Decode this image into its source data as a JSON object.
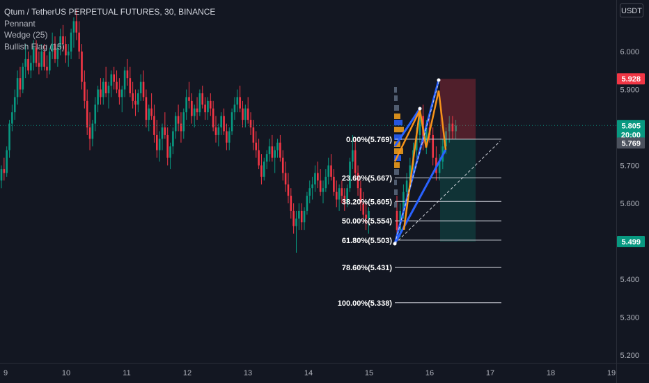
{
  "header": {
    "symbol_line": "Qtum / TetherUS PERPETUAL FUTURES, 30, BINANCE",
    "indicators": [
      "Pennant",
      "Wedge (25)",
      "Bullish Flag (15)"
    ],
    "currency": "USDT"
  },
  "chart_data": {
    "type": "candlestick",
    "title": "Qtum / TetherUS PERPETUAL FUTURES, 30, BINANCE",
    "xlabel": "",
    "ylabel": "",
    "x_ticks": [
      "9",
      "10",
      "11",
      "12",
      "13",
      "14",
      "15",
      "16",
      "17",
      "18",
      "19"
    ],
    "y_ticks": [
      "6.000",
      "5.900",
      "5.800",
      "5.700",
      "5.600",
      "5.500",
      "5.400",
      "5.300",
      "5.200"
    ],
    "ylim": [
      5.19,
      6.115
    ],
    "grid": false,
    "price_tags": [
      {
        "label": "5.928",
        "value": 5.928,
        "color": "#f23645"
      },
      {
        "label": "5.805",
        "value": 5.805,
        "color": "#089981"
      },
      {
        "label": "20:00",
        "value": 5.781,
        "color": "#089981"
      },
      {
        "label": "5.769",
        "value": 5.759,
        "color": "#4c525e"
      },
      {
        "label": "5.499",
        "value": 5.499,
        "color": "#089981"
      }
    ],
    "current_price": 5.805,
    "fibonacci": [
      {
        "label": "0.00%(5.769)",
        "value": 5.769
      },
      {
        "label": "23.60%(5.667)",
        "value": 5.667
      },
      {
        "label": "38.20%(5.605)",
        "value": 5.605
      },
      {
        "label": "50.00%(5.554)",
        "value": 5.554
      },
      {
        "label": "61.80%(5.503)",
        "value": 5.503
      },
      {
        "label": "78.60%(5.431)",
        "value": 5.431
      },
      {
        "label": "100.00%(5.338)",
        "value": 5.338
      }
    ],
    "position": {
      "entry": 5.769,
      "stop": 5.928,
      "target": 5.499
    },
    "candles": [
      [
        5.66,
        5.7,
        5.64,
        5.69
      ],
      [
        5.69,
        5.72,
        5.66,
        5.68
      ],
      [
        5.68,
        5.75,
        5.67,
        5.74
      ],
      [
        5.74,
        5.82,
        5.72,
        5.81
      ],
      [
        5.81,
        5.86,
        5.79,
        5.84
      ],
      [
        5.84,
        5.9,
        5.82,
        5.88
      ],
      [
        5.88,
        5.95,
        5.86,
        5.93
      ],
      [
        5.93,
        5.96,
        5.88,
        5.9
      ],
      [
        5.9,
        5.97,
        5.89,
        5.96
      ],
      [
        5.96,
        6.02,
        5.93,
        5.98
      ],
      [
        5.98,
        6.0,
        5.94,
        5.95
      ],
      [
        5.95,
        5.99,
        5.93,
        5.97
      ],
      [
        5.97,
        6.03,
        5.95,
        6.01
      ],
      [
        6.01,
        6.03,
        5.96,
        5.97
      ],
      [
        5.97,
        6.0,
        5.94,
        5.96
      ],
      [
        5.96,
        6.02,
        5.95,
        6.0
      ],
      [
        6.0,
        6.02,
        5.95,
        5.96
      ],
      [
        5.96,
        5.99,
        5.93,
        5.95
      ],
      [
        5.95,
        6.01,
        5.94,
        6.0
      ],
      [
        6.0,
        6.05,
        5.98,
        6.02
      ],
      [
        6.02,
        6.04,
        5.97,
        5.98
      ],
      [
        5.98,
        6.02,
        5.96,
        6.01
      ],
      [
        6.01,
        6.06,
        5.99,
        6.04
      ],
      [
        6.04,
        6.07,
        6.0,
        6.02
      ],
      [
        6.02,
        6.04,
        5.97,
        5.99
      ],
      [
        5.99,
        6.02,
        5.96,
        6.0
      ],
      [
        6.0,
        6.06,
        5.98,
        6.05
      ],
      [
        6.05,
        6.09,
        6.01,
        6.08
      ],
      [
        6.08,
        6.11,
        6.03,
        6.05
      ],
      [
        6.05,
        6.08,
        5.98,
        6.0
      ],
      [
        6.0,
        6.02,
        5.9,
        5.92
      ],
      [
        5.92,
        5.95,
        5.85,
        5.87
      ],
      [
        5.87,
        5.9,
        5.78,
        5.8
      ],
      [
        5.8,
        5.84,
        5.74,
        5.77
      ],
      [
        5.77,
        5.82,
        5.75,
        5.81
      ],
      [
        5.81,
        5.88,
        5.79,
        5.86
      ],
      [
        5.86,
        5.91,
        5.84,
        5.9
      ],
      [
        5.9,
        5.93,
        5.86,
        5.88
      ],
      [
        5.88,
        5.93,
        5.86,
        5.92
      ],
      [
        5.92,
        5.96,
        5.88,
        5.89
      ],
      [
        5.89,
        5.92,
        5.85,
        5.91
      ],
      [
        5.91,
        5.95,
        5.88,
        5.94
      ],
      [
        5.94,
        5.96,
        5.9,
        5.92
      ],
      [
        5.92,
        5.95,
        5.89,
        5.9
      ],
      [
        5.9,
        5.93,
        5.86,
        5.88
      ],
      [
        5.88,
        5.91,
        5.84,
        5.9
      ],
      [
        5.9,
        5.96,
        5.88,
        5.95
      ],
      [
        5.95,
        5.98,
        5.91,
        5.93
      ],
      [
        5.93,
        5.96,
        5.88,
        5.89
      ],
      [
        5.89,
        5.92,
        5.85,
        5.87
      ],
      [
        5.87,
        5.9,
        5.83,
        5.86
      ],
      [
        5.86,
        5.9,
        5.84,
        5.89
      ],
      [
        5.89,
        5.94,
        5.87,
        5.92
      ],
      [
        5.92,
        5.95,
        5.87,
        5.88
      ],
      [
        5.88,
        5.9,
        5.8,
        5.82
      ],
      [
        5.82,
        5.86,
        5.79,
        5.85
      ],
      [
        5.85,
        5.89,
        5.82,
        5.83
      ],
      [
        5.83,
        5.86,
        5.76,
        5.78
      ],
      [
        5.78,
        5.82,
        5.72,
        5.74
      ],
      [
        5.74,
        5.79,
        5.71,
        5.77
      ],
      [
        5.77,
        5.81,
        5.74,
        5.8
      ],
      [
        5.8,
        5.84,
        5.77,
        5.78
      ],
      [
        5.78,
        5.8,
        5.7,
        5.72
      ],
      [
        5.72,
        5.76,
        5.69,
        5.75
      ],
      [
        5.75,
        5.8,
        5.73,
        5.79
      ],
      [
        5.79,
        5.84,
        5.77,
        5.83
      ],
      [
        5.83,
        5.86,
        5.79,
        5.81
      ],
      [
        5.81,
        5.84,
        5.76,
        5.79
      ],
      [
        5.79,
        5.85,
        5.77,
        5.84
      ],
      [
        5.84,
        5.9,
        5.82,
        5.88
      ],
      [
        5.88,
        5.92,
        5.85,
        5.87
      ],
      [
        5.87,
        5.89,
        5.81,
        5.83
      ],
      [
        5.83,
        5.86,
        5.8,
        5.85
      ],
      [
        5.85,
        5.88,
        5.82,
        5.84
      ],
      [
        5.84,
        5.9,
        5.83,
        5.89
      ],
      [
        5.89,
        5.91,
        5.85,
        5.86
      ],
      [
        5.86,
        5.88,
        5.82,
        5.84
      ],
      [
        5.84,
        5.88,
        5.82,
        5.87
      ],
      [
        5.87,
        5.89,
        5.83,
        5.85
      ],
      [
        5.85,
        5.87,
        5.79,
        5.8
      ],
      [
        5.8,
        5.83,
        5.76,
        5.78
      ],
      [
        5.78,
        5.81,
        5.75,
        5.8
      ],
      [
        5.8,
        5.84,
        5.78,
        5.83
      ],
      [
        5.83,
        5.85,
        5.78,
        5.79
      ],
      [
        5.79,
        5.81,
        5.74,
        5.76
      ],
      [
        5.76,
        5.8,
        5.74,
        5.79
      ],
      [
        5.79,
        5.85,
        5.78,
        5.84
      ],
      [
        5.84,
        5.88,
        5.82,
        5.86
      ],
      [
        5.86,
        5.9,
        5.84,
        5.88
      ],
      [
        5.88,
        5.91,
        5.84,
        5.85
      ],
      [
        5.85,
        5.87,
        5.8,
        5.82
      ],
      [
        5.82,
        5.86,
        5.8,
        5.85
      ],
      [
        5.85,
        5.88,
        5.81,
        5.82
      ],
      [
        5.82,
        5.84,
        5.78,
        5.8
      ],
      [
        5.8,
        5.82,
        5.74,
        5.76
      ],
      [
        5.76,
        5.79,
        5.72,
        5.74
      ],
      [
        5.74,
        5.77,
        5.69,
        5.7
      ],
      [
        5.7,
        5.73,
        5.65,
        5.67
      ],
      [
        5.67,
        5.72,
        5.66,
        5.71
      ],
      [
        5.71,
        5.74,
        5.69,
        5.73
      ],
      [
        5.73,
        5.77,
        5.71,
        5.75
      ],
      [
        5.75,
        5.78,
        5.71,
        5.72
      ],
      [
        5.72,
        5.75,
        5.68,
        5.74
      ],
      [
        5.74,
        5.77,
        5.72,
        5.76
      ],
      [
        5.76,
        5.78,
        5.71,
        5.72
      ],
      [
        5.72,
        5.74,
        5.66,
        5.68
      ],
      [
        5.68,
        5.71,
        5.63,
        5.65
      ],
      [
        5.65,
        5.68,
        5.6,
        5.62
      ],
      [
        5.62,
        5.64,
        5.56,
        5.58
      ],
      [
        5.58,
        5.6,
        5.52,
        5.54
      ],
      [
        5.54,
        5.58,
        5.47,
        5.56
      ],
      [
        5.56,
        5.6,
        5.53,
        5.58
      ],
      [
        5.58,
        5.6,
        5.53,
        5.55
      ],
      [
        5.55,
        5.59,
        5.53,
        5.58
      ],
      [
        5.58,
        5.63,
        5.57,
        5.62
      ],
      [
        5.62,
        5.66,
        5.6,
        5.64
      ],
      [
        5.64,
        5.67,
        5.61,
        5.65
      ],
      [
        5.65,
        5.7,
        5.63,
        5.68
      ],
      [
        5.68,
        5.71,
        5.64,
        5.66
      ],
      [
        5.66,
        5.69,
        5.62,
        5.63
      ],
      [
        5.63,
        5.66,
        5.6,
        5.64
      ],
      [
        5.64,
        5.69,
        5.63,
        5.67
      ],
      [
        5.67,
        5.72,
        5.65,
        5.7
      ],
      [
        5.7,
        5.73,
        5.66,
        5.67
      ],
      [
        5.67,
        5.69,
        5.62,
        5.63
      ],
      [
        5.63,
        5.66,
        5.59,
        5.61
      ],
      [
        5.61,
        5.65,
        5.58,
        5.64
      ],
      [
        5.64,
        5.66,
        5.6,
        5.62
      ],
      [
        5.62,
        5.64,
        5.58,
        5.6
      ],
      [
        5.6,
        5.65,
        5.59,
        5.64
      ],
      [
        5.64,
        5.72,
        5.63,
        5.71
      ],
      [
        5.71,
        5.78,
        5.69,
        5.74
      ],
      [
        5.74,
        5.77,
        5.66,
        5.68
      ],
      [
        5.68,
        5.7,
        5.62,
        5.64
      ],
      [
        5.64,
        5.66,
        5.58,
        5.6
      ],
      [
        5.6,
        5.63,
        5.55,
        5.57
      ],
      [
        5.57,
        5.6,
        5.53,
        5.56
      ],
      [
        5.56,
        5.59,
        5.52,
        5.58
      ]
    ],
    "candles_after": [
      [
        5.58,
        5.62,
        5.5,
        5.53
      ],
      [
        5.53,
        5.6,
        5.51,
        5.58
      ],
      [
        5.58,
        5.65,
        5.56,
        5.63
      ],
      [
        5.63,
        5.68,
        5.6,
        5.66
      ],
      [
        5.66,
        5.72,
        5.64,
        5.7
      ],
      [
        5.7,
        5.76,
        5.68,
        5.74
      ],
      [
        5.74,
        5.8,
        5.72,
        5.78
      ],
      [
        5.78,
        5.85,
        5.76,
        5.83
      ],
      [
        5.83,
        5.86,
        5.74,
        5.76
      ],
      [
        5.76,
        5.82,
        5.73,
        5.8
      ],
      [
        5.8,
        5.84,
        5.76,
        5.78
      ],
      [
        5.78,
        5.8,
        5.7,
        5.72
      ],
      [
        5.72,
        5.75,
        5.66,
        5.68
      ],
      [
        5.68,
        5.73,
        5.66,
        5.71
      ],
      [
        5.71,
        5.77,
        5.69,
        5.75
      ],
      [
        5.75,
        5.8,
        5.73,
        5.79
      ],
      [
        5.79,
        5.83,
        5.76,
        5.81
      ],
      [
        5.81,
        5.83,
        5.77,
        5.79
      ],
      [
        5.79,
        5.82,
        5.77,
        5.805
      ]
    ]
  }
}
